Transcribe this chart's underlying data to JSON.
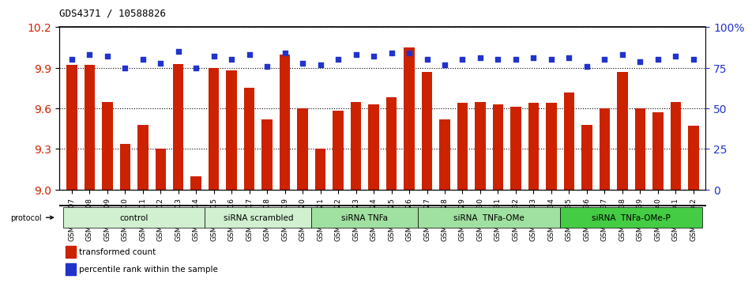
{
  "title": "GDS4371 / 10588826",
  "samples": [
    "GSM790907",
    "GSM790908",
    "GSM790909",
    "GSM790910",
    "GSM790911",
    "GSM790912",
    "GSM790913",
    "GSM790914",
    "GSM790915",
    "GSM790916",
    "GSM790917",
    "GSM790918",
    "GSM790919",
    "GSM790920",
    "GSM790921",
    "GSM790922",
    "GSM790923",
    "GSM790924",
    "GSM790925",
    "GSM790926",
    "GSM790927",
    "GSM790928",
    "GSM790929",
    "GSM790930",
    "GSM790931",
    "GSM790932",
    "GSM790933",
    "GSM790934",
    "GSM790935",
    "GSM790936",
    "GSM790937",
    "GSM790938",
    "GSM790939",
    "GSM790940",
    "GSM790941",
    "GSM790942"
  ],
  "bar_values": [
    9.92,
    9.92,
    9.65,
    9.34,
    9.48,
    9.3,
    9.93,
    9.1,
    9.9,
    9.88,
    9.75,
    9.52,
    10.0,
    9.6,
    9.3,
    9.58,
    9.65,
    9.63,
    9.68,
    10.05,
    9.87,
    9.52,
    9.64,
    9.65,
    9.63,
    9.61,
    9.64,
    9.64,
    9.72,
    9.48,
    9.6,
    9.87,
    9.6,
    9.57,
    9.65,
    9.47
  ],
  "percentile_values": [
    80,
    83,
    82,
    75,
    80,
    78,
    85,
    75,
    82,
    80,
    83,
    76,
    84,
    78,
    77,
    80,
    83,
    82,
    84,
    84,
    80,
    77,
    80,
    81,
    80,
    80,
    81,
    80,
    81,
    76,
    80,
    83,
    79,
    80,
    82,
    80
  ],
  "groups": [
    {
      "label": "control",
      "start": 0,
      "end": 8,
      "color": "#c8f0c8"
    },
    {
      "label": "siRNA scrambled",
      "start": 8,
      "end": 14,
      "color": "#c8f0c8"
    },
    {
      "label": "siRNA TNFa",
      "start": 14,
      "end": 20,
      "color": "#90ee90"
    },
    {
      "label": "siRNA  TNFa-OMe",
      "start": 20,
      "end": 28,
      "color": "#90ee90"
    },
    {
      "label": "siRNA  TNFa-OMe-P",
      "start": 28,
      "end": 36,
      "color": "#00cc00"
    }
  ],
  "bar_color": "#cc2200",
  "dot_color": "#2233cc",
  "ylim_left": [
    9.0,
    10.2
  ],
  "ylim_right": [
    0,
    100
  ],
  "yticks_left": [
    9.0,
    9.3,
    9.6,
    9.9,
    10.2
  ],
  "yticks_right": [
    0,
    25,
    50,
    75,
    100
  ],
  "ytick_labels_right": [
    "0",
    "25",
    "50",
    "75",
    "100%"
  ],
  "bg_color": "#ffffff",
  "grid_color": "#000000"
}
